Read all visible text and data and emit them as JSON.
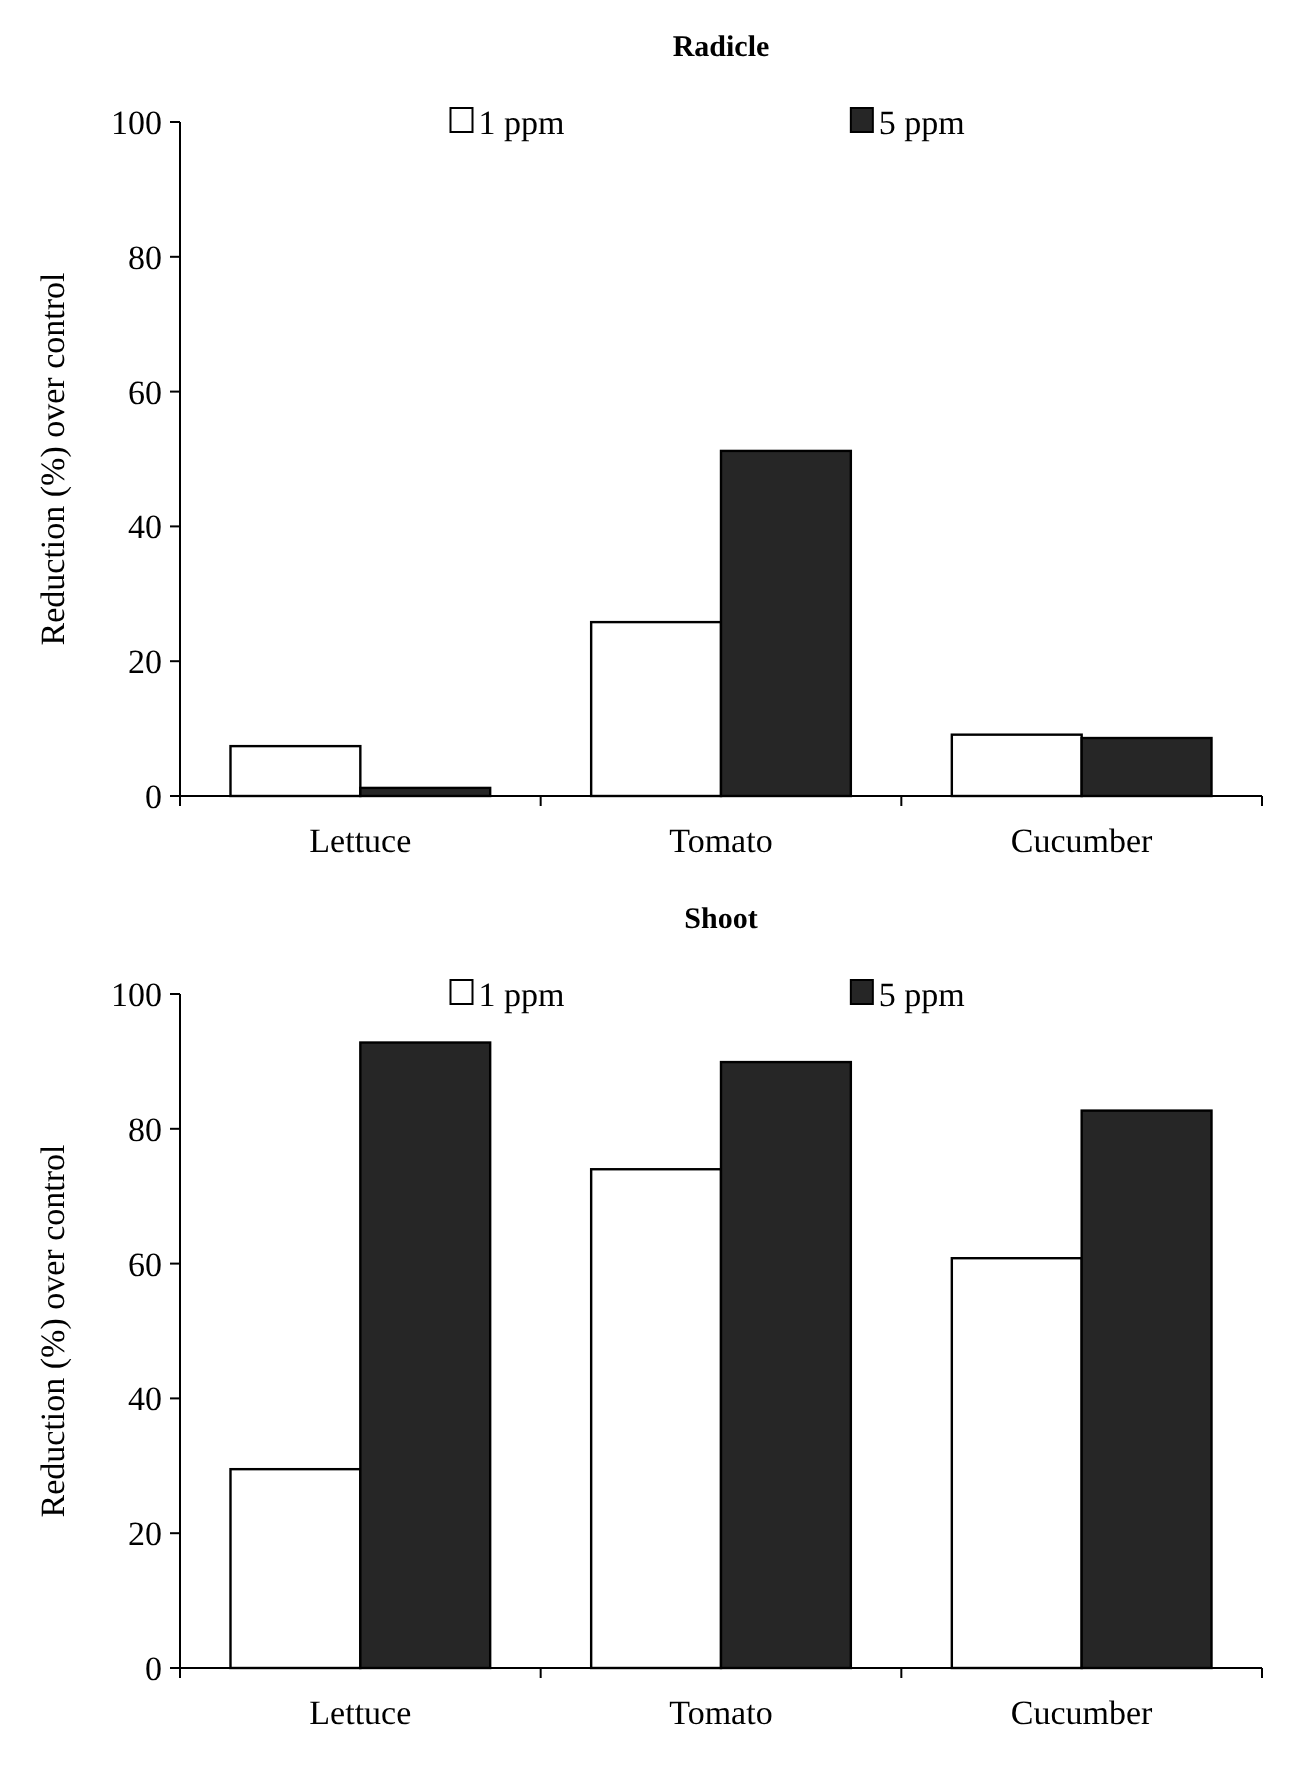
{
  "chart_data": [
    {
      "type": "bar",
      "title": "Radicle",
      "ylabel": "Reduction (%) over control",
      "categories": [
        "Lettuce",
        "Tomato",
        "Cucumber"
      ],
      "series": [
        {
          "name": "1 ppm",
          "color": "#ffffff",
          "values": [
            7.4,
            25.8,
            9.1
          ]
        },
        {
          "name": "5 ppm",
          "color": "#262626",
          "values": [
            1.2,
            51.2,
            8.6
          ]
        }
      ],
      "ylim": [
        0,
        100
      ],
      "yticks": [
        0,
        20,
        40,
        60,
        80,
        100
      ],
      "legend": "top"
    },
    {
      "type": "bar",
      "title": "Shoot",
      "ylabel": "Reduction (%) over control",
      "categories": [
        "Lettuce",
        "Tomato",
        "Cucumber"
      ],
      "series": [
        {
          "name": "1 ppm",
          "color": "#ffffff",
          "values": [
            29.5,
            74,
            60.8
          ]
        },
        {
          "name": "5 ppm",
          "color": "#262626",
          "values": [
            92.8,
            89.9,
            82.7
          ]
        }
      ],
      "ylim": [
        0,
        100
      ],
      "yticks": [
        0,
        20,
        40,
        60,
        80,
        100
      ],
      "legend": "top"
    }
  ]
}
